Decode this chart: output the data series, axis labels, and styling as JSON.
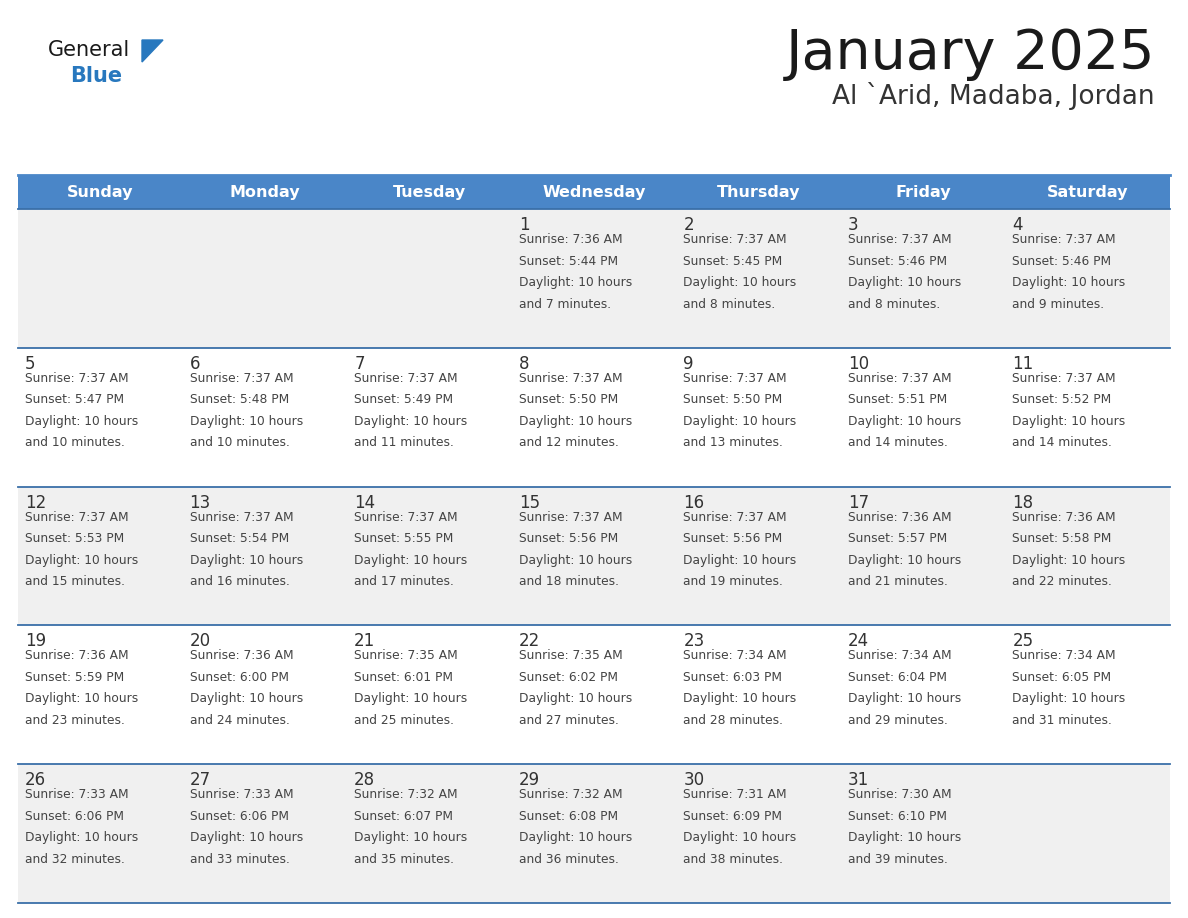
{
  "title": "January 2025",
  "subtitle": "Al `Arid, Madaba, Jordan",
  "days_of_week": [
    "Sunday",
    "Monday",
    "Tuesday",
    "Wednesday",
    "Thursday",
    "Friday",
    "Saturday"
  ],
  "header_bg": "#4A86C8",
  "header_text": "#FFFFFF",
  "row_bg_even": "#F0F0F0",
  "row_bg_odd": "#FFFFFF",
  "cell_border": "#3A6FA8",
  "day_num_color": "#333333",
  "text_color": "#444444",
  "title_color": "#1a1a1a",
  "subtitle_color": "#333333",
  "logo_general_color": "#1a1a1a",
  "logo_blue_color": "#2878BE",
  "calendar_data": [
    [
      null,
      null,
      null,
      {
        "day": 1,
        "sunrise": "7:36 AM",
        "sunset": "5:44 PM",
        "daylight": "10 hours and 7 minutes."
      },
      {
        "day": 2,
        "sunrise": "7:37 AM",
        "sunset": "5:45 PM",
        "daylight": "10 hours and 8 minutes."
      },
      {
        "day": 3,
        "sunrise": "7:37 AM",
        "sunset": "5:46 PM",
        "daylight": "10 hours and 8 minutes."
      },
      {
        "day": 4,
        "sunrise": "7:37 AM",
        "sunset": "5:46 PM",
        "daylight": "10 hours and 9 minutes."
      }
    ],
    [
      {
        "day": 5,
        "sunrise": "7:37 AM",
        "sunset": "5:47 PM",
        "daylight": "10 hours and 10 minutes."
      },
      {
        "day": 6,
        "sunrise": "7:37 AM",
        "sunset": "5:48 PM",
        "daylight": "10 hours and 10 minutes."
      },
      {
        "day": 7,
        "sunrise": "7:37 AM",
        "sunset": "5:49 PM",
        "daylight": "10 hours and 11 minutes."
      },
      {
        "day": 8,
        "sunrise": "7:37 AM",
        "sunset": "5:50 PM",
        "daylight": "10 hours and 12 minutes."
      },
      {
        "day": 9,
        "sunrise": "7:37 AM",
        "sunset": "5:50 PM",
        "daylight": "10 hours and 13 minutes."
      },
      {
        "day": 10,
        "sunrise": "7:37 AM",
        "sunset": "5:51 PM",
        "daylight": "10 hours and 14 minutes."
      },
      {
        "day": 11,
        "sunrise": "7:37 AM",
        "sunset": "5:52 PM",
        "daylight": "10 hours and 14 minutes."
      }
    ],
    [
      {
        "day": 12,
        "sunrise": "7:37 AM",
        "sunset": "5:53 PM",
        "daylight": "10 hours and 15 minutes."
      },
      {
        "day": 13,
        "sunrise": "7:37 AM",
        "sunset": "5:54 PM",
        "daylight": "10 hours and 16 minutes."
      },
      {
        "day": 14,
        "sunrise": "7:37 AM",
        "sunset": "5:55 PM",
        "daylight": "10 hours and 17 minutes."
      },
      {
        "day": 15,
        "sunrise": "7:37 AM",
        "sunset": "5:56 PM",
        "daylight": "10 hours and 18 minutes."
      },
      {
        "day": 16,
        "sunrise": "7:37 AM",
        "sunset": "5:56 PM",
        "daylight": "10 hours and 19 minutes."
      },
      {
        "day": 17,
        "sunrise": "7:36 AM",
        "sunset": "5:57 PM",
        "daylight": "10 hours and 21 minutes."
      },
      {
        "day": 18,
        "sunrise": "7:36 AM",
        "sunset": "5:58 PM",
        "daylight": "10 hours and 22 minutes."
      }
    ],
    [
      {
        "day": 19,
        "sunrise": "7:36 AM",
        "sunset": "5:59 PM",
        "daylight": "10 hours and 23 minutes."
      },
      {
        "day": 20,
        "sunrise": "7:36 AM",
        "sunset": "6:00 PM",
        "daylight": "10 hours and 24 minutes."
      },
      {
        "day": 21,
        "sunrise": "7:35 AM",
        "sunset": "6:01 PM",
        "daylight": "10 hours and 25 minutes."
      },
      {
        "day": 22,
        "sunrise": "7:35 AM",
        "sunset": "6:02 PM",
        "daylight": "10 hours and 27 minutes."
      },
      {
        "day": 23,
        "sunrise": "7:34 AM",
        "sunset": "6:03 PM",
        "daylight": "10 hours and 28 minutes."
      },
      {
        "day": 24,
        "sunrise": "7:34 AM",
        "sunset": "6:04 PM",
        "daylight": "10 hours and 29 minutes."
      },
      {
        "day": 25,
        "sunrise": "7:34 AM",
        "sunset": "6:05 PM",
        "daylight": "10 hours and 31 minutes."
      }
    ],
    [
      {
        "day": 26,
        "sunrise": "7:33 AM",
        "sunset": "6:06 PM",
        "daylight": "10 hours and 32 minutes."
      },
      {
        "day": 27,
        "sunrise": "7:33 AM",
        "sunset": "6:06 PM",
        "daylight": "10 hours and 33 minutes."
      },
      {
        "day": 28,
        "sunrise": "7:32 AM",
        "sunset": "6:07 PM",
        "daylight": "10 hours and 35 minutes."
      },
      {
        "day": 29,
        "sunrise": "7:32 AM",
        "sunset": "6:08 PM",
        "daylight": "10 hours and 36 minutes."
      },
      {
        "day": 30,
        "sunrise": "7:31 AM",
        "sunset": "6:09 PM",
        "daylight": "10 hours and 38 minutes."
      },
      {
        "day": 31,
        "sunrise": "7:30 AM",
        "sunset": "6:10 PM",
        "daylight": "10 hours and 39 minutes."
      },
      null
    ]
  ]
}
